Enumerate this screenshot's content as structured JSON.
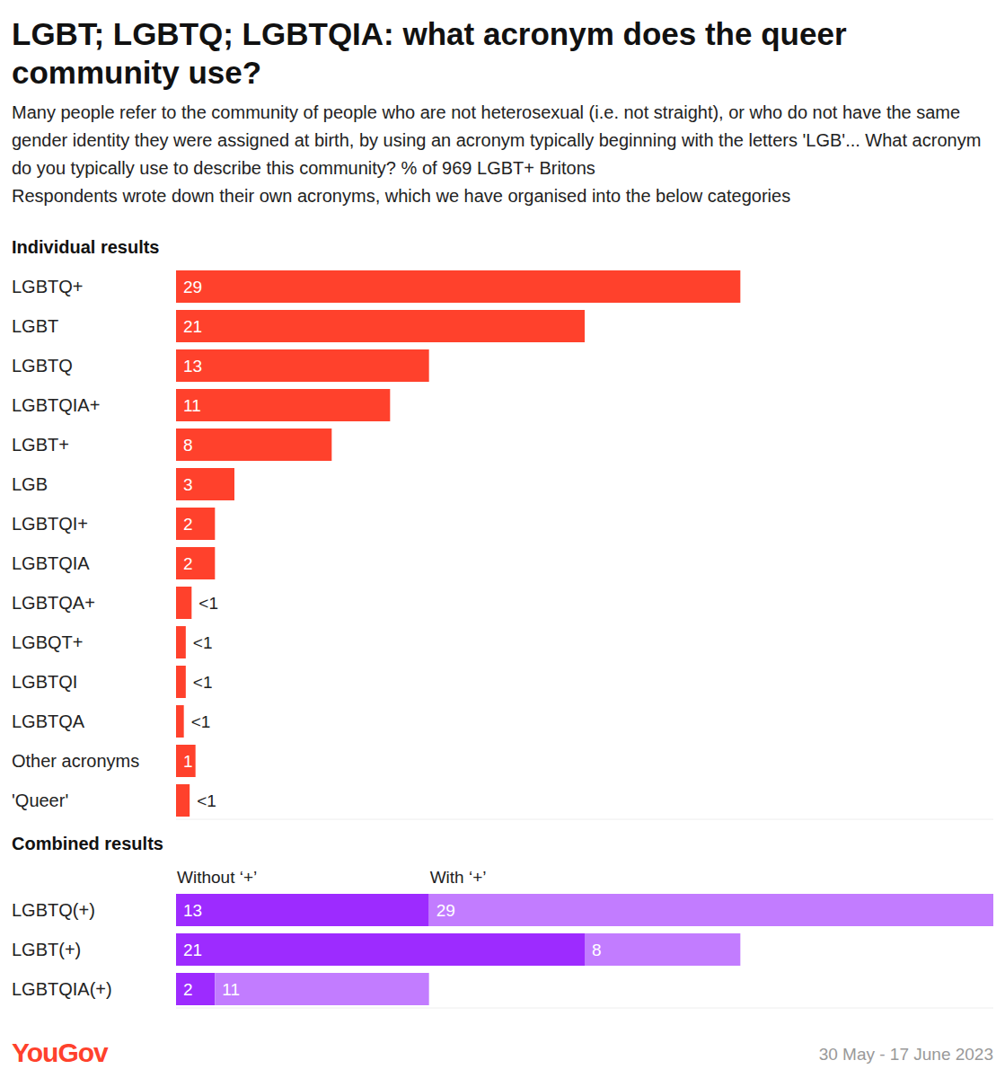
{
  "title": "LGBT; LGBTQ; LGBTQIA: what acronym does the queer community use?",
  "subtitle": "Many people refer to the community of people who are not heterosexual (i.e. not straight), or who do not have the same gender identity they were assigned at birth, by using an acronym typically beginning with the letters 'LGB'... What acronym do you typically use to describe this community? % of 969 LGBT+ Britons",
  "note": "Respondents wrote down their own acronyms, which we have organised into the below categories",
  "brand": "YouGov",
  "date": "30 May - 17 June 2023",
  "chart_data": [
    {
      "type": "bar",
      "title": "Individual results",
      "orientation": "horizontal",
      "categories": [
        "LGBTQ+",
        "LGBT",
        "LGBTQ",
        "LGBTQIA+",
        "LGBT+",
        "LGB",
        "LGBTQI+",
        "LGBTQIA",
        "LGBTQA+",
        "LGBQT+",
        "LGBTQI",
        "LGBTQA",
        "Other acronyms",
        "'Queer'"
      ],
      "values": [
        29,
        21,
        13,
        11,
        8,
        3,
        2,
        2,
        0.8,
        0.5,
        0.5,
        0.4,
        1,
        0.7
      ],
      "value_labels": [
        "29",
        "21",
        "13",
        "11",
        "8",
        "3",
        "2",
        "2",
        "<1",
        "<1",
        "<1",
        "<1",
        "1",
        "<1"
      ],
      "color": "#ff412c",
      "xlim": [
        0,
        42
      ],
      "data_labels": true,
      "tick_labels": "y"
    },
    {
      "type": "bar",
      "title": "Combined results",
      "orientation": "horizontal",
      "stacked": true,
      "categories": [
        "LGBTQ(+)",
        "LGBT(+)",
        "LGBTQIA(+)"
      ],
      "series": [
        {
          "name": "Without ‘+’",
          "color": "#9d2bff",
          "values": [
            13,
            21,
            2
          ]
        },
        {
          "name": "With ‘+’",
          "color": "#c27cff",
          "values": [
            29,
            8,
            11
          ]
        }
      ],
      "xlim": [
        0,
        42
      ],
      "data_labels": true,
      "tick_labels": "y"
    }
  ]
}
